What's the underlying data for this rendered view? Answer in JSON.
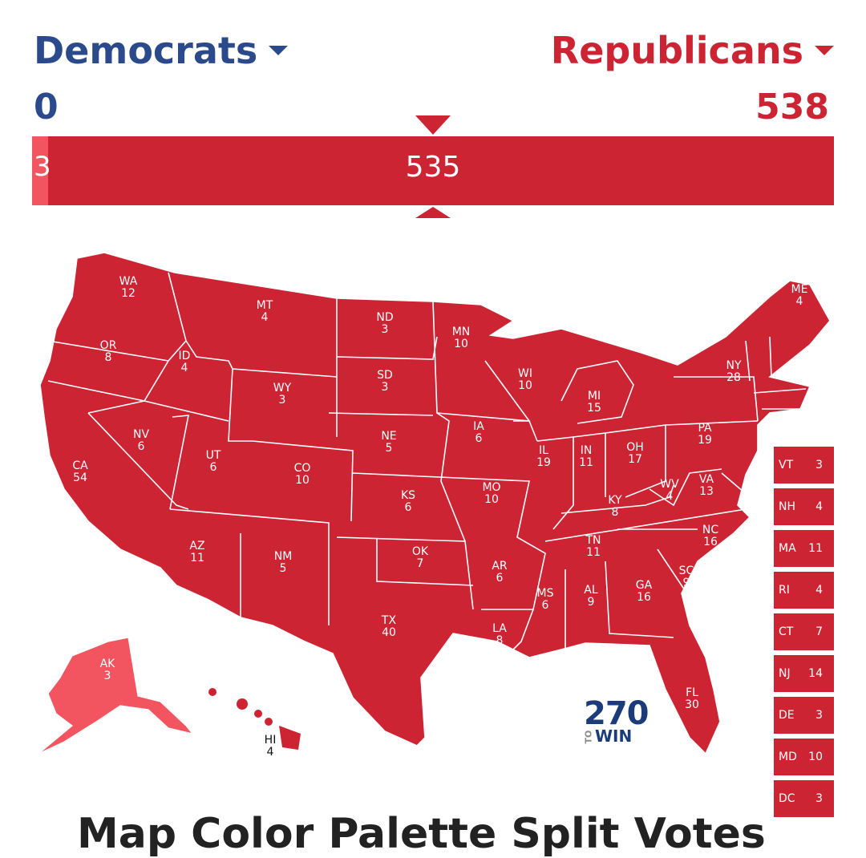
{
  "colors": {
    "democrat": "#2a4a8c",
    "republican": "#cd2433",
    "lean_republican": "#f2555f",
    "tossup": "#9a9a9a"
  },
  "header": {
    "dem_label": "Democrats",
    "rep_label": "Republicans",
    "dem_total": "0",
    "rep_total": "538"
  },
  "bar": {
    "lean_rep_value": "3",
    "solid_rep_value": "535",
    "lean_rep_share": 0.0056
  },
  "states": [
    {
      "abbr": "WA",
      "ev": "12",
      "rating": "R"
    },
    {
      "abbr": "OR",
      "ev": "8",
      "rating": "R"
    },
    {
      "abbr": "CA",
      "ev": "54",
      "rating": "R"
    },
    {
      "abbr": "ID",
      "ev": "4",
      "rating": "R"
    },
    {
      "abbr": "NV",
      "ev": "6",
      "rating": "R"
    },
    {
      "abbr": "MT",
      "ev": "4",
      "rating": "R"
    },
    {
      "abbr": "WY",
      "ev": "3",
      "rating": "R"
    },
    {
      "abbr": "UT",
      "ev": "6",
      "rating": "R"
    },
    {
      "abbr": "AZ",
      "ev": "11",
      "rating": "R"
    },
    {
      "abbr": "CO",
      "ev": "10",
      "rating": "R"
    },
    {
      "abbr": "NM",
      "ev": "5",
      "rating": "R"
    },
    {
      "abbr": "ND",
      "ev": "3",
      "rating": "R"
    },
    {
      "abbr": "SD",
      "ev": "3",
      "rating": "R"
    },
    {
      "abbr": "NE",
      "ev": "5",
      "rating": "R"
    },
    {
      "abbr": "KS",
      "ev": "6",
      "rating": "R"
    },
    {
      "abbr": "OK",
      "ev": "7",
      "rating": "R"
    },
    {
      "abbr": "TX",
      "ev": "40",
      "rating": "R"
    },
    {
      "abbr": "MN",
      "ev": "10",
      "rating": "R"
    },
    {
      "abbr": "IA",
      "ev": "6",
      "rating": "R"
    },
    {
      "abbr": "MO",
      "ev": "10",
      "rating": "R"
    },
    {
      "abbr": "AR",
      "ev": "6",
      "rating": "R"
    },
    {
      "abbr": "LA",
      "ev": "8",
      "rating": "R"
    },
    {
      "abbr": "WI",
      "ev": "10",
      "rating": "R"
    },
    {
      "abbr": "IL",
      "ev": "19",
      "rating": "R"
    },
    {
      "abbr": "MI",
      "ev": "15",
      "rating": "R"
    },
    {
      "abbr": "IN",
      "ev": "11",
      "rating": "R"
    },
    {
      "abbr": "OH",
      "ev": "17",
      "rating": "R"
    },
    {
      "abbr": "KY",
      "ev": "8",
      "rating": "R"
    },
    {
      "abbr": "TN",
      "ev": "11",
      "rating": "R"
    },
    {
      "abbr": "MS",
      "ev": "6",
      "rating": "R"
    },
    {
      "abbr": "AL",
      "ev": "9",
      "rating": "R"
    },
    {
      "abbr": "GA",
      "ev": "16",
      "rating": "R"
    },
    {
      "abbr": "FL",
      "ev": "30",
      "rating": "R"
    },
    {
      "abbr": "SC",
      "ev": "9",
      "rating": "R"
    },
    {
      "abbr": "NC",
      "ev": "16",
      "rating": "R"
    },
    {
      "abbr": "VA",
      "ev": "13",
      "rating": "R"
    },
    {
      "abbr": "WV",
      "ev": "4",
      "rating": "R"
    },
    {
      "abbr": "PA",
      "ev": "19",
      "rating": "R"
    },
    {
      "abbr": "NY",
      "ev": "28",
      "rating": "R"
    },
    {
      "abbr": "ME",
      "ev": "4",
      "rating": "R"
    },
    {
      "abbr": "AK",
      "ev": "3",
      "rating": "Lean R"
    },
    {
      "abbr": "HI",
      "ev": "4",
      "rating": "R"
    }
  ],
  "small_states": [
    {
      "abbr": "VT",
      "ev": "3"
    },
    {
      "abbr": "NH",
      "ev": "4"
    },
    {
      "abbr": "MA",
      "ev": "11"
    },
    {
      "abbr": "RI",
      "ev": "4"
    },
    {
      "abbr": "CT",
      "ev": "7"
    },
    {
      "abbr": "NJ",
      "ev": "14"
    },
    {
      "abbr": "DE",
      "ev": "3"
    },
    {
      "abbr": "MD",
      "ev": "10"
    },
    {
      "abbr": "DC",
      "ev": "3"
    }
  ],
  "logo": {
    "number": "270",
    "to": "TO",
    "win": "WIN"
  },
  "footer_partial": "Map Color Palette     Split Votes"
}
